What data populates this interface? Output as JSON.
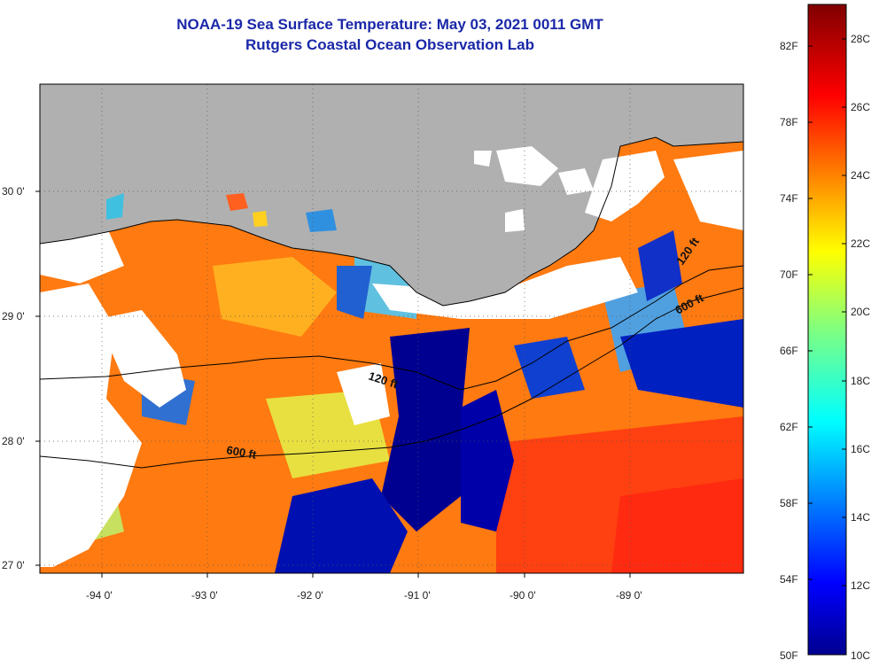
{
  "title": {
    "line1": "NOAA-19 Sea Surface Temperature:  May 03, 2021 0011 GMT",
    "line2": "Rutgers Coastal Ocean Observation Lab"
  },
  "map": {
    "lat_labels": [
      "30 0'",
      "29 0'",
      "28 0'",
      "27 0'"
    ],
    "lon_labels": [
      "-94 0'",
      "-93 0'",
      "-92 0'",
      "-91 0'",
      "-90 0'",
      "-89 0'"
    ],
    "contours": [
      {
        "label": "120 ft",
        "depth_ft": 120
      },
      {
        "label": "600 ft",
        "depth_ft": 600
      },
      {
        "label": "120 ft",
        "depth_ft": 120
      },
      {
        "label": "600 ft",
        "depth_ft": 600
      }
    ]
  },
  "colorbar": {
    "fahrenheit_labels": [
      "82F",
      "78F",
      "74F",
      "70F",
      "66F",
      "62F",
      "58F",
      "54F",
      "50F"
    ],
    "celsius_labels": [
      "28C",
      "26C",
      "24C",
      "22C",
      "20C",
      "18C",
      "16C",
      "14C",
      "12C",
      "10C"
    ]
  },
  "colors": {
    "land": "#b0b0b0",
    "cloud": "#ffffff",
    "title": "#1a28a8",
    "scale": [
      "#00008f",
      "#0000ff",
      "#0080ff",
      "#00ffff",
      "#80ff80",
      "#ffff00",
      "#ff8000",
      "#ff0000",
      "#800000"
    ]
  }
}
